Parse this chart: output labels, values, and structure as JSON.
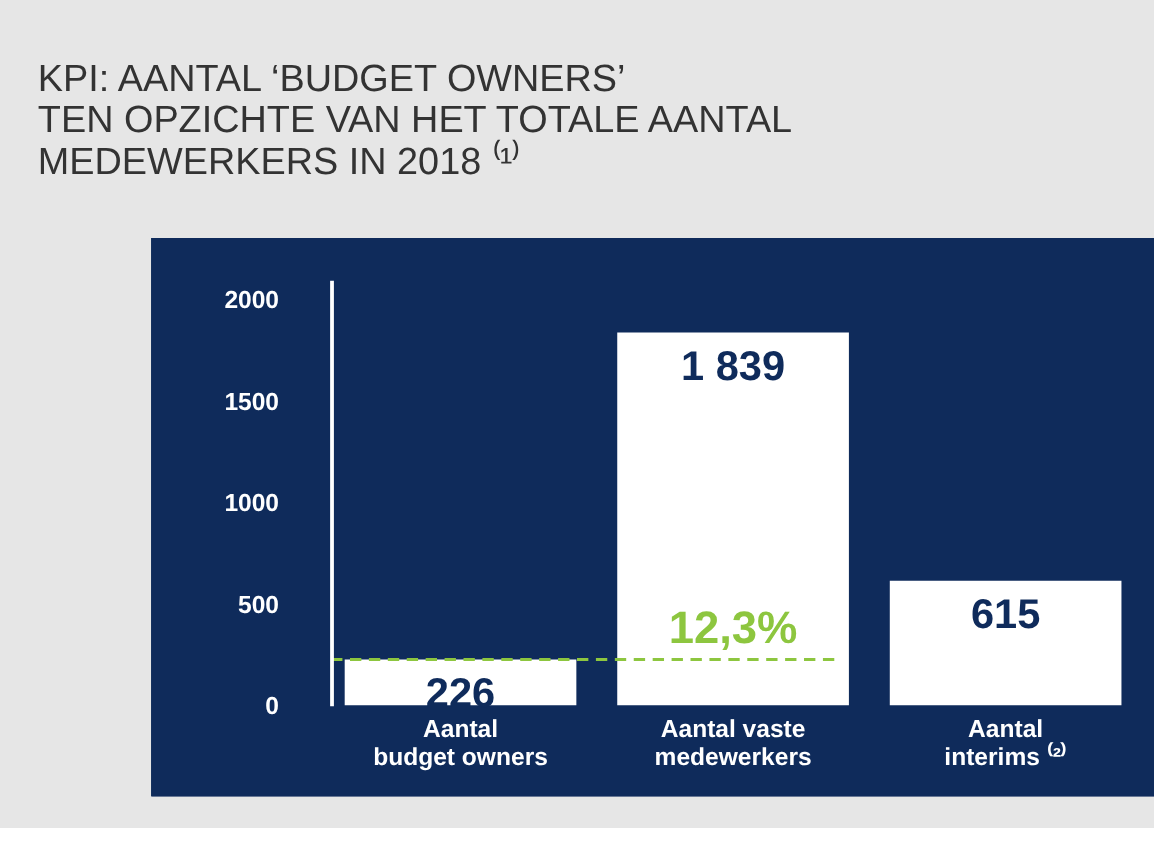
{
  "chart_data": {
    "type": "bar",
    "title": "KPI: AANTAL ‘BUDGET OWNERS’\nTEN OPZICHTE VAN HET TOTALE AANTAL\nMEDEWERKERS IN 2018 ⁽¹⁾",
    "categories": [
      "Aantal\nbudget owners",
      "Aantal vaste\nmedewerkers",
      "Aantal\ninterims ⁽²⁾"
    ],
    "values": [
      226,
      1839,
      615
    ],
    "color": "#ffffff",
    "value_labels": [
      "226",
      "1 839",
      "615"
    ],
    "ylim": [
      0,
      2100
    ],
    "yticks": [
      0,
      500,
      1000,
      1500,
      2000
    ],
    "grid": false,
    "ref_lines": [
      {
        "axis": "y",
        "value": 226,
        "color": "#8dc63f",
        "line_style": "dashed"
      }
    ],
    "annotations": [
      {
        "text": "12,3%",
        "x": "Aantal vaste\nmedewerkers",
        "y": 226
      }
    ]
  }
}
